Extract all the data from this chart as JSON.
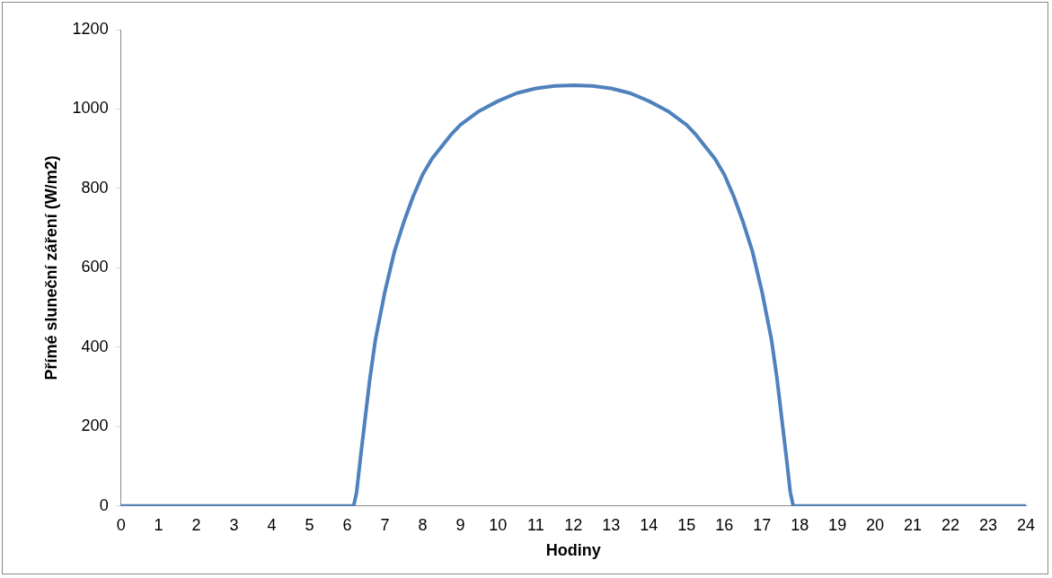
{
  "chart_data": {
    "type": "line",
    "xlabel": "Hodiny",
    "ylabel": "Přímé sluneční záření (W/m2)",
    "xlim": [
      0,
      24
    ],
    "xticks": [
      0,
      1,
      2,
      3,
      4,
      5,
      6,
      7,
      8,
      9,
      10,
      11,
      12,
      13,
      14,
      15,
      16,
      17,
      18,
      19,
      20,
      21,
      22,
      23,
      24
    ],
    "ylim": [
      0,
      1200
    ],
    "yticks": [
      0,
      200,
      400,
      600,
      800,
      1000,
      1200
    ],
    "grid": false,
    "legend": false,
    "marker": "none",
    "line_style": "solid",
    "series": [
      {
        "color": "#4f81bd",
        "x": [
          0,
          6,
          6.17,
          6.25,
          6.35,
          6.5,
          6.6,
          6.75,
          7,
          7.25,
          7.5,
          7.75,
          8,
          8.25,
          8.5,
          8.75,
          9,
          9.5,
          10,
          10.5,
          11,
          11.5,
          12,
          12.5,
          13,
          13.5,
          14,
          14.5,
          15,
          15.25,
          15.5,
          15.75,
          16,
          16.25,
          16.5,
          16.75,
          17,
          17.25,
          17.4,
          17.5,
          17.65,
          17.75,
          17.83,
          18,
          24
        ],
        "values": [
          0,
          0,
          0,
          35,
          120,
          240,
          320,
          420,
          540,
          640,
          715,
          780,
          835,
          875,
          905,
          935,
          960,
          995,
          1020,
          1040,
          1052,
          1058,
          1060,
          1058,
          1052,
          1040,
          1020,
          995,
          960,
          935,
          905,
          875,
          835,
          780,
          715,
          640,
          540,
          420,
          320,
          240,
          120,
          35,
          0,
          0,
          0
        ]
      }
    ]
  }
}
